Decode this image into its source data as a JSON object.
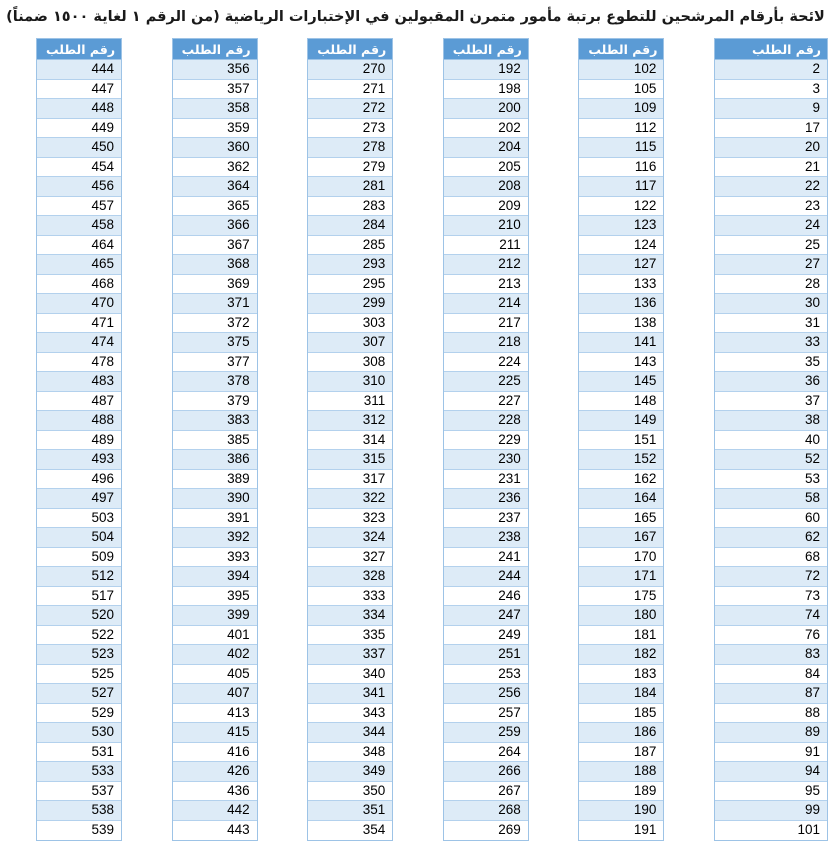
{
  "document": {
    "title": "لائحة بأرقام المرشحين للتطوع برتبة مأمور متمرن المقبولين في الإختبارات الرياضية (من الرقم ١ لغاية ١٥٠٠ ضمناً)",
    "column_header": "رقم الطلب"
  },
  "colors": {
    "header_bg": "#5B9BD5",
    "header_text": "#FFFFFF",
    "row_alt_bg": "#DDEBF7",
    "row_bg": "#FFFFFF",
    "border": "#9DC3E6",
    "text": "#000000"
  },
  "columns": [
    {
      "position": "rightmost",
      "values": [
        2,
        3,
        9,
        17,
        20,
        21,
        22,
        23,
        24,
        25,
        27,
        28,
        30,
        31,
        33,
        35,
        36,
        37,
        38,
        40,
        52,
        53,
        58,
        60,
        62,
        68,
        72,
        73,
        74,
        76,
        83,
        84,
        87,
        88,
        89,
        91,
        94,
        95,
        99,
        101
      ]
    },
    {
      "position": "second-from-right",
      "values": [
        102,
        105,
        109,
        112,
        115,
        116,
        117,
        122,
        123,
        124,
        127,
        133,
        136,
        138,
        141,
        143,
        145,
        148,
        149,
        151,
        152,
        162,
        164,
        165,
        167,
        170,
        171,
        175,
        180,
        181,
        182,
        183,
        184,
        185,
        186,
        187,
        188,
        189,
        190,
        191
      ]
    },
    {
      "position": "third-from-right",
      "values": [
        192,
        198,
        200,
        202,
        204,
        205,
        208,
        209,
        210,
        211,
        212,
        213,
        214,
        217,
        218,
        224,
        225,
        227,
        228,
        229,
        230,
        231,
        236,
        237,
        238,
        241,
        244,
        246,
        247,
        249,
        251,
        253,
        256,
        257,
        259,
        264,
        266,
        267,
        268,
        269
      ]
    },
    {
      "position": "fourth-from-right",
      "values": [
        270,
        271,
        272,
        273,
        278,
        279,
        281,
        283,
        284,
        285,
        293,
        295,
        299,
        303,
        307,
        308,
        310,
        311,
        312,
        314,
        315,
        317,
        322,
        323,
        324,
        327,
        328,
        333,
        334,
        335,
        337,
        340,
        341,
        343,
        344,
        348,
        349,
        350,
        351,
        354
      ]
    },
    {
      "position": "fifth-from-right",
      "values": [
        356,
        357,
        358,
        359,
        360,
        362,
        364,
        365,
        366,
        367,
        368,
        369,
        371,
        372,
        375,
        377,
        378,
        379,
        383,
        385,
        386,
        389,
        390,
        391,
        392,
        393,
        394,
        395,
        399,
        401,
        402,
        405,
        407,
        413,
        415,
        416,
        426,
        436,
        442,
        443
      ]
    },
    {
      "position": "leftmost",
      "values": [
        444,
        447,
        448,
        449,
        450,
        454,
        456,
        457,
        458,
        464,
        465,
        468,
        470,
        471,
        474,
        478,
        483,
        487,
        488,
        489,
        493,
        496,
        497,
        503,
        504,
        509,
        512,
        517,
        520,
        522,
        523,
        525,
        527,
        529,
        530,
        531,
        533,
        537,
        538,
        539
      ]
    }
  ]
}
